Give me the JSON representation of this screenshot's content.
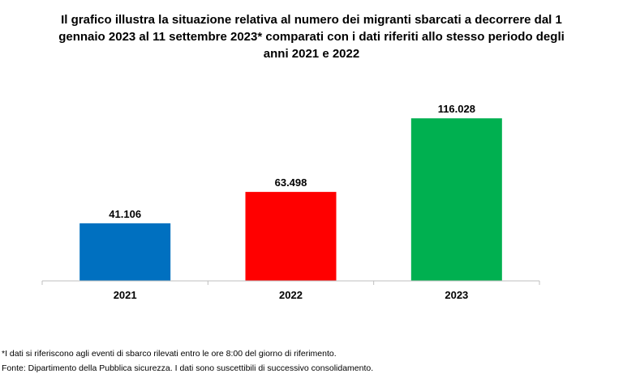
{
  "chart_data": {
    "type": "bar",
    "title_lines": [
      "Il grafico illustra la situazione relativa al numero dei migranti sbarcati a decorrere dal 1",
      "gennaio 2023 al 11 settembre 2023* comparati con i dati riferiti allo stesso periodo degli",
      "anni 2021 e 2022"
    ],
    "categories": [
      "2021",
      "2022",
      "2023"
    ],
    "values": [
      41106,
      63498,
      116028
    ],
    "value_labels": [
      "41.106",
      "63.498",
      "116.028"
    ],
    "colors": [
      "#0070C0",
      "#FF0000",
      "#00B050"
    ],
    "ylim": [
      0,
      130000
    ],
    "xlabel": "",
    "ylabel": "",
    "grid": false,
    "legend": "none"
  },
  "footnotes": [
    "*I dati si riferiscono agli eventi di sbarco rilevati entro le ore 8:00 del giorno di riferimento.",
    "Fonte: Dipartimento della Pubblica sicurezza. I dati sono suscettibili di successivo consolidamento."
  ]
}
